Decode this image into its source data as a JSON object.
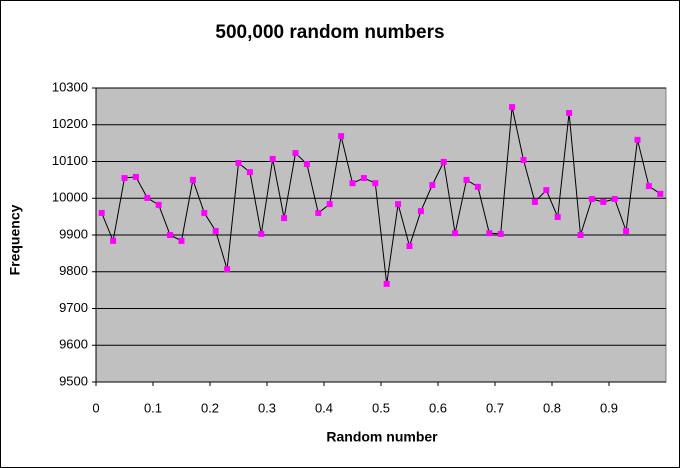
{
  "chart_data": {
    "type": "line",
    "title": "500,000 random numbers",
    "x_label": "Random number",
    "y_label": "Frequency",
    "x": [
      0.01,
      0.03,
      0.05,
      0.07,
      0.09,
      0.11,
      0.13,
      0.15,
      0.17,
      0.19,
      0.21,
      0.23,
      0.25,
      0.27,
      0.29,
      0.31,
      0.33,
      0.35,
      0.37,
      0.39,
      0.41,
      0.43,
      0.45,
      0.47,
      0.49,
      0.51,
      0.53,
      0.55,
      0.57,
      0.59,
      0.61,
      0.63,
      0.65,
      0.67,
      0.69,
      0.71,
      0.73,
      0.75,
      0.77,
      0.79,
      0.81,
      0.83,
      0.85,
      0.87,
      0.89,
      0.91,
      0.93,
      0.95,
      0.97,
      0.99
    ],
    "series": [
      {
        "color": "#ff00ff",
        "line_color": "#000000",
        "values": [
          9960,
          9884,
          10055,
          10058,
          10001,
          9982,
          9900,
          9884,
          10050,
          9960,
          9911,
          9807,
          10096,
          10071,
          9903,
          10107,
          9946,
          10123,
          10093,
          9960,
          9984,
          10169,
          10041,
          10055,
          10041,
          9767,
          9984,
          9870,
          9965,
          10036,
          10099,
          9905,
          10050,
          10031,
          9905,
          9903,
          10248,
          10104,
          9990,
          10022,
          9949,
          10232,
          9900,
          9998,
          9990,
          9998,
          9911,
          10159,
          10033,
          10012
        ]
      }
    ],
    "xlim": [
      0,
      1
    ],
    "xticks": [
      0,
      0.1,
      0.2,
      0.3,
      0.4,
      0.5,
      0.6,
      0.7,
      0.8,
      0.9
    ],
    "ylim": [
      9500,
      10300
    ],
    "yticks": [
      9500,
      9600,
      9700,
      9800,
      9900,
      10000,
      10100,
      10200,
      10300
    ],
    "grid": true,
    "plot_background": "#c0c0c0"
  }
}
